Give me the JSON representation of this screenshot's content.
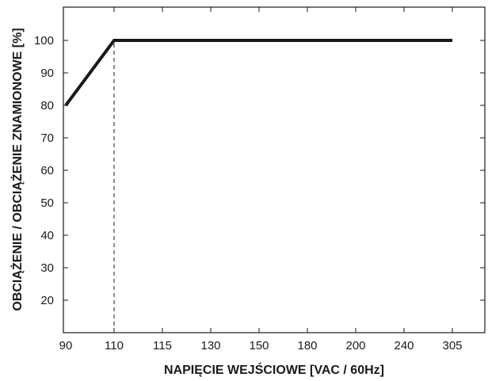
{
  "chart_data": {
    "type": "line",
    "title": "",
    "xlabel": "NAPIĘCIE WEJŚCIOWE [VAC / 60Hz]",
    "ylabel": "OBCIĄŻENIE / OBCIĄŻENIE ZNAMIONOWE [%]",
    "x_categories": [
      "90",
      "110",
      "115",
      "130",
      "150",
      "180",
      "200",
      "240",
      "305"
    ],
    "yticks": [
      20,
      30,
      40,
      50,
      60,
      70,
      80,
      90,
      100
    ],
    "ylim": [
      10,
      110
    ],
    "series": [
      {
        "x": [
          "90",
          "110",
          "305"
        ],
        "y": [
          80,
          100,
          100
        ]
      }
    ],
    "reference_lines": [
      {
        "x": "110",
        "y_from": 10,
        "y_to": 100,
        "style": "dashed"
      }
    ],
    "grid": false,
    "colors": {
      "line": "#1a1a1a",
      "axes": "#1a1a1a"
    }
  }
}
